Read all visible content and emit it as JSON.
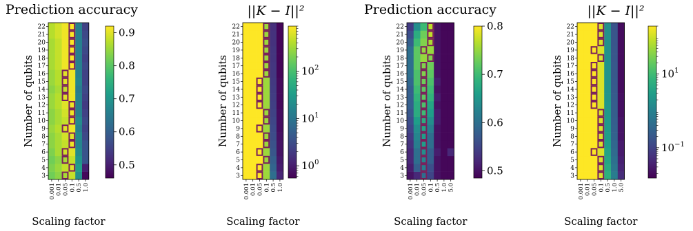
{
  "chart_data": [
    {
      "type": "heatmap",
      "title": "Prediction accuracy",
      "xlabel": "Scaling factor",
      "ylabel": "Number of qubits",
      "x_categories": [
        "0.001",
        "0.01",
        "0.05",
        "0.1",
        "0.5",
        "1.0"
      ],
      "y_categories": [
        "3",
        "4",
        "5",
        "6",
        "7",
        "8",
        "9",
        "10",
        "11",
        "12",
        "13",
        "14",
        "15",
        "16",
        "17",
        "18",
        "19",
        "20",
        "21",
        "22"
      ],
      "values": [
        [
          0.82,
          0.84,
          0.86,
          0.88,
          0.69,
          0.47
        ],
        [
          0.83,
          0.85,
          0.88,
          0.9,
          0.72,
          0.5
        ],
        [
          0.82,
          0.84,
          0.86,
          0.88,
          0.7,
          0.58
        ],
        [
          0.83,
          0.86,
          0.89,
          0.9,
          0.68,
          0.58
        ],
        [
          0.84,
          0.86,
          0.88,
          0.91,
          0.67,
          0.58
        ],
        [
          0.84,
          0.86,
          0.89,
          0.9,
          0.68,
          0.56
        ],
        [
          0.85,
          0.87,
          0.9,
          0.91,
          0.66,
          0.55
        ],
        [
          0.84,
          0.86,
          0.88,
          0.91,
          0.68,
          0.56
        ],
        [
          0.84,
          0.86,
          0.89,
          0.91,
          0.66,
          0.55
        ],
        [
          0.85,
          0.87,
          0.9,
          0.91,
          0.66,
          0.54
        ],
        [
          0.85,
          0.87,
          0.9,
          0.91,
          0.66,
          0.55
        ],
        [
          0.84,
          0.86,
          0.88,
          0.91,
          0.65,
          0.56
        ],
        [
          0.85,
          0.87,
          0.9,
          0.91,
          0.67,
          0.55
        ],
        [
          0.85,
          0.87,
          0.9,
          0.91,
          0.66,
          0.55
        ],
        [
          0.86,
          0.88,
          0.91,
          0.92,
          0.66,
          0.56
        ],
        [
          0.86,
          0.88,
          0.91,
          0.92,
          0.66,
          0.55
        ],
        [
          0.86,
          0.88,
          0.91,
          0.92,
          0.66,
          0.56
        ],
        [
          0.86,
          0.88,
          0.91,
          0.92,
          0.66,
          0.57
        ],
        [
          0.87,
          0.89,
          0.91,
          0.92,
          0.66,
          0.56
        ],
        [
          0.87,
          0.89,
          0.91,
          0.92,
          0.66,
          0.55
        ]
      ],
      "highlighted_x_per_row": [
        2,
        3,
        2,
        2,
        3,
        3,
        2,
        3,
        3,
        3,
        2,
        2,
        2,
        2,
        3,
        3,
        3,
        3,
        3,
        3
      ],
      "highlight_color": "#7a1f5c",
      "colormap": "viridis",
      "colorbar_scale": "linear",
      "vlim": [
        0.46,
        0.92
      ],
      "colorbar_ticks": [
        {
          "v": 0.5,
          "label": "0.5"
        },
        {
          "v": 0.6,
          "label": "0.6"
        },
        {
          "v": 0.7,
          "label": "0.7"
        },
        {
          "v": 0.8,
          "label": "0.8"
        },
        {
          "v": 0.9,
          "label": "0.9"
        }
      ]
    },
    {
      "type": "heatmap",
      "title": "||K − I||²",
      "xlabel": "Scaling factor",
      "ylabel": "Number of qubits",
      "x_categories": [
        "0.001",
        "0.01",
        "0.05",
        "0.1",
        "0.5",
        "1.0"
      ],
      "y_categories": [
        "3",
        "4",
        "5",
        "6",
        "7",
        "8",
        "9",
        "10",
        "11",
        "12",
        "13",
        "14",
        "15",
        "16",
        "17",
        "18",
        "19",
        "20",
        "21",
        "22"
      ],
      "values": [
        [
          900,
          900,
          900,
          300,
          8,
          1.2
        ],
        [
          900,
          900,
          900,
          300,
          6,
          1.0
        ],
        [
          900,
          900,
          900,
          300,
          5,
          0.9
        ],
        [
          900,
          900,
          900,
          300,
          4,
          0.8
        ],
        [
          900,
          900,
          900,
          300,
          3.5,
          0.8
        ],
        [
          900,
          900,
          900,
          300,
          3,
          0.75
        ],
        [
          900,
          900,
          900,
          300,
          2.8,
          0.7
        ],
        [
          900,
          900,
          900,
          300,
          2.6,
          0.7
        ],
        [
          900,
          900,
          900,
          300,
          2.4,
          0.7
        ],
        [
          900,
          900,
          900,
          300,
          2.2,
          0.65
        ],
        [
          900,
          900,
          900,
          300,
          2.1,
          0.65
        ],
        [
          900,
          900,
          900,
          300,
          2,
          0.65
        ],
        [
          900,
          900,
          900,
          300,
          1.9,
          0.65
        ],
        [
          900,
          900,
          900,
          300,
          1.8,
          0.6
        ],
        [
          900,
          900,
          900,
          300,
          1.8,
          0.6
        ],
        [
          900,
          900,
          900,
          300,
          1.7,
          0.6
        ],
        [
          900,
          900,
          900,
          300,
          1.7,
          0.6
        ],
        [
          900,
          900,
          900,
          300,
          1.6,
          0.6
        ],
        [
          900,
          900,
          900,
          300,
          1.6,
          0.6
        ],
        [
          900,
          900,
          900,
          300,
          1.5,
          0.6
        ]
      ],
      "highlighted_x_per_row": [
        2,
        2,
        3,
        2,
        3,
        3,
        2,
        3,
        3,
        2,
        2,
        2,
        2,
        3,
        3,
        3,
        3,
        3,
        3,
        3
      ],
      "highlight_color": "#7a1f5c",
      "colormap": "viridis",
      "colorbar_scale": "log",
      "vlim": [
        0.55,
        900
      ],
      "colorbar_ticks": [
        {
          "v": 1,
          "label": "10",
          "exp": "0"
        },
        {
          "v": 10,
          "label": "10",
          "exp": "1"
        },
        {
          "v": 100,
          "label": "10",
          "exp": "2"
        }
      ]
    },
    {
      "type": "heatmap",
      "title": "Prediction accuracy",
      "xlabel": "Scaling factor",
      "ylabel": "Number of qubits",
      "x_categories": [
        "0.001",
        "0.01",
        "0.05",
        "0.1",
        "0.5",
        "1.0",
        "5.0"
      ],
      "y_categories": [
        "3",
        "4",
        "5",
        "6",
        "7",
        "8",
        "9",
        "10",
        "11",
        "12",
        "13",
        "14",
        "15",
        "16",
        "17",
        "18",
        "19",
        "20",
        "21",
        "22"
      ],
      "values": [
        [
          0.5,
          0.52,
          0.6,
          0.55,
          0.5,
          0.49,
          0.49
        ],
        [
          0.51,
          0.58,
          0.62,
          0.56,
          0.5,
          0.49,
          0.49
        ],
        [
          0.52,
          0.6,
          0.63,
          0.58,
          0.5,
          0.49,
          0.49
        ],
        [
          0.52,
          0.6,
          0.64,
          0.58,
          0.51,
          0.49,
          0.52
        ],
        [
          0.53,
          0.62,
          0.66,
          0.6,
          0.5,
          0.49,
          0.49
        ],
        [
          0.54,
          0.63,
          0.66,
          0.6,
          0.5,
          0.49,
          0.49
        ],
        [
          0.55,
          0.64,
          0.67,
          0.62,
          0.5,
          0.49,
          0.49
        ],
        [
          0.56,
          0.66,
          0.68,
          0.64,
          0.51,
          0.49,
          0.49
        ],
        [
          0.57,
          0.68,
          0.7,
          0.66,
          0.51,
          0.49,
          0.49
        ],
        [
          0.58,
          0.68,
          0.71,
          0.67,
          0.5,
          0.49,
          0.49
        ],
        [
          0.58,
          0.69,
          0.72,
          0.69,
          0.51,
          0.49,
          0.49
        ],
        [
          0.58,
          0.7,
          0.72,
          0.7,
          0.5,
          0.49,
          0.49
        ],
        [
          0.59,
          0.71,
          0.73,
          0.71,
          0.51,
          0.49,
          0.49
        ],
        [
          0.6,
          0.71,
          0.74,
          0.72,
          0.5,
          0.49,
          0.49
        ],
        [
          0.6,
          0.72,
          0.74,
          0.73,
          0.5,
          0.49,
          0.49
        ],
        [
          0.6,
          0.72,
          0.75,
          0.74,
          0.5,
          0.49,
          0.49
        ],
        [
          0.6,
          0.72,
          0.75,
          0.75,
          0.5,
          0.49,
          0.49
        ],
        [
          0.58,
          0.7,
          0.74,
          0.76,
          0.5,
          0.49,
          0.49
        ],
        [
          0.56,
          0.68,
          0.73,
          0.77,
          0.5,
          0.49,
          0.49
        ],
        [
          0.54,
          0.64,
          0.7,
          0.77,
          0.5,
          0.49,
          0.49
        ]
      ],
      "highlighted_x_per_row": [
        2,
        2,
        2,
        2,
        2,
        2,
        2,
        2,
        2,
        2,
        2,
        2,
        2,
        2,
        2,
        3,
        2,
        3,
        3,
        3
      ],
      "highlight_color": "#7a1f5c",
      "colormap": "viridis",
      "colorbar_scale": "linear",
      "vlim": [
        0.485,
        0.8
      ],
      "colorbar_ticks": [
        {
          "v": 0.5,
          "label": "0.5"
        },
        {
          "v": 0.6,
          "label": "0.6"
        },
        {
          "v": 0.7,
          "label": "0.7"
        },
        {
          "v": 0.8,
          "label": "0.8"
        }
      ]
    },
    {
      "type": "heatmap",
      "title": "||K − I||²",
      "xlabel": "Scaling factor",
      "ylabel": "Number of qubits",
      "x_categories": [
        "0.001",
        "0.01",
        "0.05",
        "0.1",
        "0.5",
        "1.0",
        "5.0"
      ],
      "y_categories": [
        "3",
        "4",
        "5",
        "6",
        "7",
        "8",
        "9",
        "10",
        "11",
        "12",
        "13",
        "14",
        "15",
        "16",
        "17",
        "18",
        "19",
        "20",
        "21",
        "22"
      ],
      "values": [
        [
          200,
          200,
          200,
          120,
          6,
          0.8,
          0.05
        ],
        [
          200,
          200,
          200,
          120,
          5,
          0.6,
          0.04
        ],
        [
          200,
          200,
          200,
          120,
          4,
          0.5,
          0.035
        ],
        [
          200,
          200,
          200,
          120,
          3.5,
          0.4,
          0.03
        ],
        [
          200,
          200,
          200,
          120,
          3,
          0.35,
          0.03
        ],
        [
          200,
          200,
          200,
          120,
          2.8,
          0.3,
          0.025
        ],
        [
          200,
          200,
          200,
          120,
          2.6,
          0.28,
          0.025
        ],
        [
          200,
          200,
          200,
          120,
          2.5,
          0.26,
          0.025
        ],
        [
          200,
          200,
          200,
          120,
          2.4,
          0.25,
          0.022
        ],
        [
          200,
          200,
          200,
          120,
          2.3,
          0.24,
          0.022
        ],
        [
          200,
          200,
          200,
          120,
          2.2,
          0.23,
          0.022
        ],
        [
          200,
          200,
          200,
          120,
          2.1,
          0.22,
          0.02
        ],
        [
          200,
          200,
          200,
          120,
          2,
          0.21,
          0.02
        ],
        [
          200,
          200,
          200,
          120,
          2,
          0.2,
          0.02
        ],
        [
          200,
          200,
          200,
          120,
          1.9,
          0.2,
          0.02
        ],
        [
          200,
          200,
          200,
          120,
          1.9,
          0.19,
          0.02
        ],
        [
          200,
          200,
          200,
          120,
          1.8,
          0.19,
          0.02
        ],
        [
          200,
          200,
          200,
          120,
          1.8,
          0.18,
          0.02
        ],
        [
          200,
          200,
          200,
          120,
          1.7,
          0.18,
          0.02
        ],
        [
          200,
          200,
          200,
          120,
          1.7,
          0.17,
          0.02
        ]
      ],
      "highlighted_x_per_row": [
        3,
        3,
        3,
        2,
        3,
        3,
        3,
        3,
        3,
        2,
        2,
        2,
        2,
        2,
        2,
        3,
        2,
        3,
        3,
        3
      ],
      "highlight_color": "#7a1f5c",
      "colormap": "viridis",
      "colorbar_scale": "log",
      "vlim": [
        0.015,
        200
      ],
      "colorbar_ticks": [
        {
          "v": 0.1,
          "label": "10",
          "exp": "−1"
        },
        {
          "v": 10,
          "label": "10",
          "exp": "1"
        }
      ]
    }
  ]
}
